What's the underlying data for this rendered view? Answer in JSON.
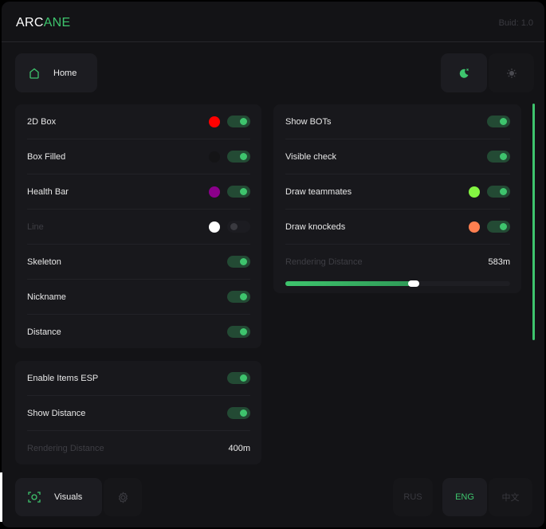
{
  "header": {
    "logo_a": "ARC",
    "logo_b": "ANE",
    "build": "Buid: 1.0"
  },
  "nav": {
    "home_label": "Home",
    "theme_dark_icon": "moon-icon",
    "theme_light_icon": "sun-icon"
  },
  "esp_panel": {
    "rows": [
      {
        "label": "2D Box",
        "color": "#ff0000",
        "on": true
      },
      {
        "label": "Box Filled",
        "color": "#141416",
        "on": true
      },
      {
        "label": "Health Bar",
        "color": "#8b008b",
        "on": true
      },
      {
        "label": "Line",
        "color": "#ffffff",
        "on": false,
        "disabled": true
      },
      {
        "label": "Skeleton",
        "on": true
      },
      {
        "label": "Nickname",
        "on": true
      },
      {
        "label": "Distance",
        "on": true
      }
    ]
  },
  "items_panel": {
    "rows": [
      {
        "label": "Enable Items ESP",
        "on": true
      },
      {
        "label": "Show Distance",
        "on": true
      }
    ],
    "distance_label": "Rendering Distance",
    "distance_value": "400m",
    "distance_fraction": 0.4
  },
  "player_panel": {
    "rows": [
      {
        "label": "Show BOTs",
        "on": true
      },
      {
        "label": "Visible check",
        "on": true
      },
      {
        "label": "Draw teammates",
        "color": "#84f542",
        "on": true
      },
      {
        "label": "Draw knockeds",
        "color": "#ff7f50",
        "on": true
      }
    ],
    "distance_label": "Rendering Distance",
    "distance_value": "583m",
    "distance_fraction": 0.57
  },
  "bottom": {
    "visuals_label": "Visuals",
    "languages": [
      "RUS",
      "ENG",
      "中文"
    ],
    "active_language": "ENG"
  },
  "colors": {
    "accent": "#3ec46d",
    "background": "#131316"
  }
}
